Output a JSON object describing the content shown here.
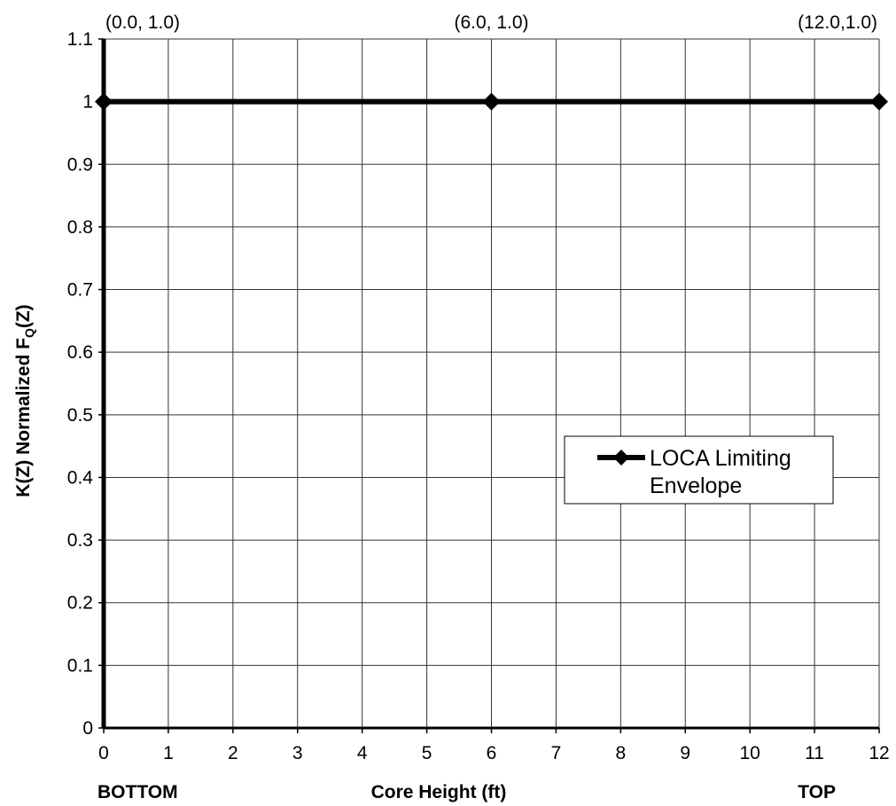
{
  "chart_data": {
    "type": "line",
    "xlabel": "Core Height (ft)",
    "ylabel_main": "K(Z) Normalized F",
    "ylabel_sub": "Q",
    "ylabel_tail": "(Z)",
    "x_left_label": "BOTTOM",
    "x_right_label": "TOP",
    "xlim": [
      0,
      12
    ],
    "ylim": [
      0,
      1.1
    ],
    "x_ticks": [
      0,
      1,
      2,
      3,
      4,
      5,
      6,
      7,
      8,
      9,
      10,
      11,
      12
    ],
    "x_tick_labels": [
      "0",
      "1",
      "2",
      "3",
      "4",
      "5",
      "6",
      "7",
      "8",
      "9",
      "10",
      "11",
      "12"
    ],
    "y_ticks": [
      0,
      0.1,
      0.2,
      0.3,
      0.4,
      0.5,
      0.6,
      0.7,
      0.8,
      0.9,
      1,
      1.1
    ],
    "y_tick_labels": [
      "0",
      "0.1",
      "0.2",
      "0.3",
      "0.4",
      "0.5",
      "0.6",
      "0.7",
      "0.8",
      "0.9",
      "1",
      "1.1"
    ],
    "grid": true,
    "legend_position": "right-middle",
    "series": [
      {
        "name": "LOCA Limiting Envelope",
        "name_lines": [
          "LOCA Limiting",
          "Envelope"
        ],
        "color": "#000000",
        "marker": "diamond",
        "x": [
          0,
          6,
          12
        ],
        "y": [
          1.0,
          1.0,
          1.0
        ]
      }
    ],
    "annotations": [
      {
        "text": "(0.0, 1.0)",
        "x": 0,
        "y": 1.0
      },
      {
        "text": "(6.0, 1.0)",
        "x": 6,
        "y": 1.0
      },
      {
        "text": "(12.0,1.0)",
        "x": 12,
        "y": 1.0
      }
    ]
  }
}
